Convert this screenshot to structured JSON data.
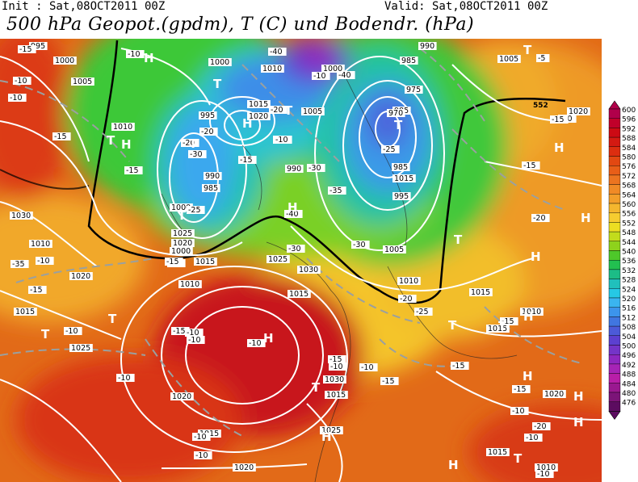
{
  "header": {
    "init": "Init : Sat,08OCT2011 00Z",
    "valid": "Valid: Sat,08OCT2011 00Z",
    "title": "500 hPa Geopot.(gpdm), T (C) und Bodendr. (hPa)"
  },
  "legend": {
    "labels": [
      "600",
      "596",
      "592",
      "588",
      "584",
      "580",
      "576",
      "572",
      "568",
      "564",
      "560",
      "556",
      "552",
      "548",
      "544",
      "540",
      "536",
      "532",
      "528",
      "524",
      "520",
      "516",
      "512",
      "508",
      "504",
      "500",
      "496",
      "492",
      "488",
      "484",
      "480",
      "476"
    ],
    "colors": [
      "#b0004a",
      "#c0002a",
      "#cc0a14",
      "#d41a12",
      "#dc2e10",
      "#e24812",
      "#e85e18",
      "#ec7420",
      "#f08a26",
      "#f29e2a",
      "#f4b62e",
      "#f6cc30",
      "#ecde22",
      "#c2dc1c",
      "#8ed21c",
      "#4ec82a",
      "#22c050",
      "#1cbc86",
      "#20c0bc",
      "#26c8e4",
      "#3ab4f0",
      "#3c94ec",
      "#4076e0",
      "#4c5ad8",
      "#5c40d0",
      "#7434c8",
      "#8e28c0",
      "#a624b6",
      "#b81ea8",
      "#9a1890",
      "#7c1478",
      "#5c0c60"
    ]
  },
  "map": {
    "pressure_labels": [
      "995",
      "1000",
      "1005",
      "1000",
      "1010",
      "1000",
      "990",
      "985",
      "975",
      "1005",
      "1015",
      "995",
      "985",
      "1020",
      "970",
      "1005",
      "1020",
      "1010",
      "980",
      "985",
      "1015",
      "990",
      "990",
      "985",
      "995",
      "1000",
      "1030",
      "1025",
      "1020",
      "1010",
      "1000",
      "1015",
      "1020",
      "1025",
      "1010",
      "1005",
      "1030",
      "1015",
      "1010",
      "1015",
      "1015",
      "1010",
      "1015",
      "1025",
      "1030",
      "1020",
      "1015",
      "1020",
      "1025",
      "1015",
      "1020",
      "1015",
      "1010"
    ],
    "temp_labels": [
      "-15",
      "-10",
      "-10",
      "-15",
      "-10",
      "-10",
      "-20",
      "-30",
      "-40",
      "-40",
      "-10",
      "-15",
      "-20",
      "-15",
      "-10",
      "-20",
      "-25",
      "-30",
      "-35",
      "-30",
      "-25",
      "-40",
      "-30",
      "-35",
      "-15",
      "-20",
      "-15",
      "-30",
      "-20",
      "-15",
      "-15",
      "-20",
      "-15",
      "-25",
      "-10",
      "-15",
      "-10",
      "-10",
      "-10",
      "-15",
      "-10",
      "-10",
      "-15",
      "-10",
      "-10",
      "-10",
      "-10",
      "-15",
      "-20",
      "-15",
      "-10",
      "-10",
      "-5"
    ],
    "highs": [
      "H",
      "H",
      "H",
      "H",
      "H",
      "H",
      "H",
      "H",
      "H",
      "H",
      "H",
      "H",
      "H",
      "H"
    ],
    "lows": [
      "T",
      "T",
      "T",
      "T",
      "T",
      "T",
      "T",
      "T",
      "T",
      "T",
      "T",
      "T",
      "T",
      "T"
    ],
    "contour_label": "552"
  }
}
